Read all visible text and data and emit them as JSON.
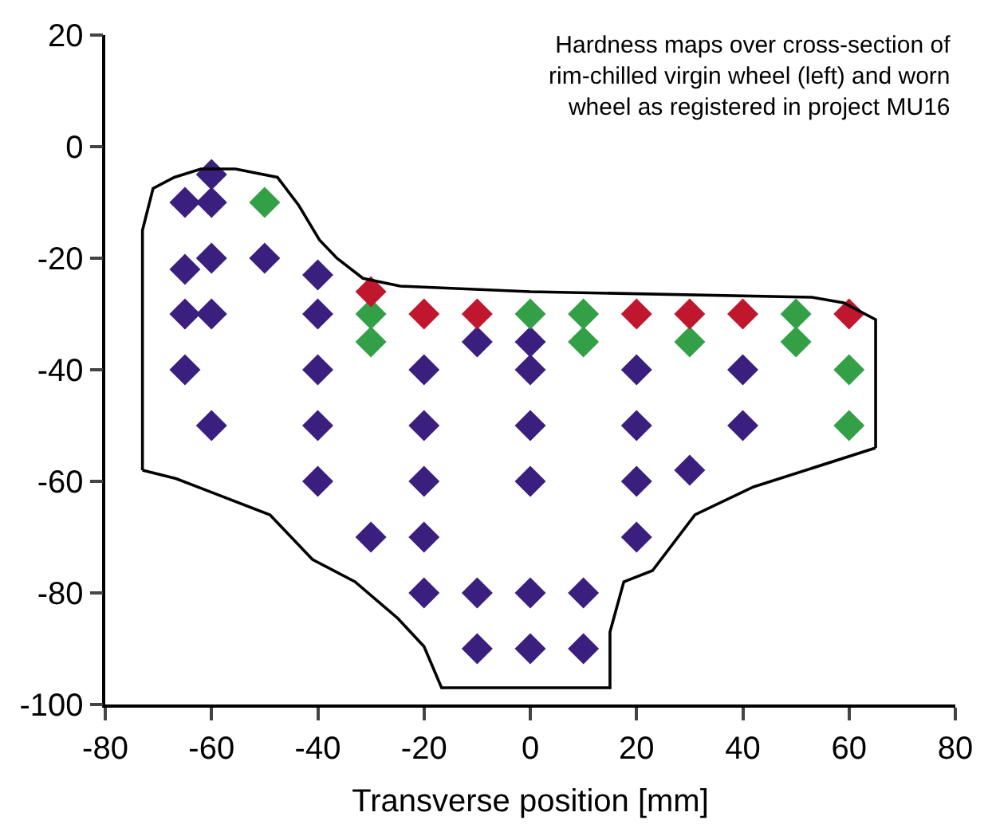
{
  "chart_data": {
    "type": "scatter",
    "xlabel": "Transverse position [mm]",
    "annotations": [
      "Hardness maps over cross-section of\nrim-chilled virgin wheel (left) and worn\nwheel as registered in project MU16"
    ],
    "xlim": [
      -80,
      80
    ],
    "xticks": [
      -80,
      -60,
      -40,
      -20,
      0,
      20,
      40,
      60,
      80
    ],
    "ylim": [
      -100,
      20
    ],
    "yticks": [
      -100,
      -80,
      -60,
      -40,
      -20,
      0,
      20
    ],
    "marker": "diamond",
    "series": [
      {
        "color": "#3a1f7e",
        "x": [
          -60,
          -65,
          -60,
          -65,
          -60,
          -50,
          -40,
          -65,
          -60,
          -40,
          -10,
          0,
          -65,
          -40,
          -20,
          0,
          20,
          40,
          -60,
          -40,
          -20,
          0,
          20,
          40,
          -40,
          -20,
          0,
          20,
          30,
          -30,
          -20,
          20,
          -20,
          -10,
          0,
          10,
          -10,
          0,
          10
        ],
        "values": [
          -5,
          -10,
          -10,
          -22,
          -20,
          -20,
          -23,
          -30,
          -30,
          -30,
          -35,
          -35,
          -40,
          -40,
          -40,
          -40,
          -40,
          -40,
          -50,
          -50,
          -50,
          -50,
          -50,
          -50,
          -60,
          -60,
          -60,
          -60,
          -58,
          -70,
          -70,
          -70,
          -80,
          -80,
          -80,
          -80,
          -90,
          -90,
          -90
        ]
      },
      {
        "color": "#33a047",
        "x": [
          -50,
          -30,
          0,
          10,
          50,
          -30,
          10,
          30,
          50,
          60,
          60
        ],
        "values": [
          -10,
          -30,
          -30,
          -30,
          -30,
          -35,
          -35,
          -35,
          -35,
          -40,
          -50
        ]
      },
      {
        "color": "#c0172f",
        "x": [
          -30,
          -20,
          -10,
          20,
          30,
          40,
          60
        ],
        "values": [
          -26,
          -30,
          -30,
          -30,
          -30,
          -30,
          -30
        ]
      },
      {
        "type": "line",
        "color": "#000000",
        "marker": "none",
        "line_style": "solid",
        "x": [
          -73,
          -73,
          -71,
          -67,
          -62,
          -55.5,
          -47.6,
          -43.6,
          -39.7,
          -36.4,
          -31.5,
          -24.5,
          0,
          53,
          59,
          65,
          65
        ],
        "values": [
          -58,
          -15,
          -7.5,
          -5.5,
          -4,
          -4,
          -5.5,
          -10.5,
          -16.7,
          -20,
          -23.6,
          -25,
          -26,
          -27,
          -28,
          -31,
          -54
        ]
      },
      {
        "type": "line",
        "color": "#000000",
        "marker": "none",
        "line_style": "solid",
        "x": [
          -73,
          -66.7,
          -49,
          -41,
          -33,
          -25,
          -20,
          -16.7,
          15,
          15,
          17.6,
          23,
          31,
          42,
          65
        ],
        "values": [
          -58,
          -59.5,
          -66,
          -74,
          -78,
          -84.5,
          -89.6,
          -97,
          -97,
          -87,
          -78,
          -76,
          -66,
          -61,
          -54
        ]
      }
    ]
  }
}
